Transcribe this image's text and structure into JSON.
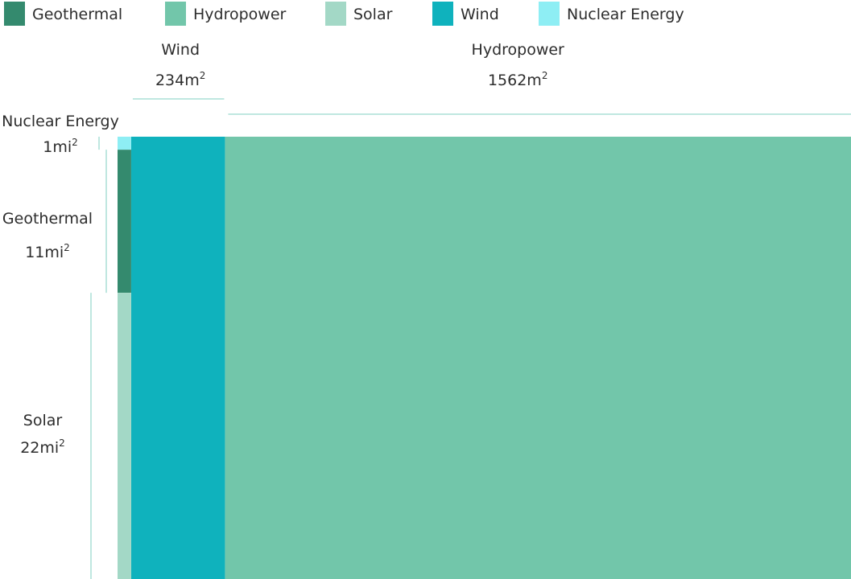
{
  "chart_data": {
    "type": "treemap",
    "legend_position": "top",
    "legend": [
      {
        "name": "Geothermal",
        "color": "#348a6e"
      },
      {
        "name": "Hydropower",
        "color": "#72c6aa"
      },
      {
        "name": "Solar",
        "color": "#a3d8c6"
      },
      {
        "name": "Wind",
        "color": "#0fb2bd"
      },
      {
        "name": "Nuclear  Energy",
        "color": "#8eeef4"
      }
    ],
    "items": [
      {
        "name": "Hydropower",
        "value": 1562,
        "value_label": "1562m",
        "unit_mark": "2",
        "color": "#72c6aa"
      },
      {
        "name": "Wind",
        "value": 234,
        "value_label": "234m",
        "unit_mark": "2",
        "color": "#0fb2bd"
      },
      {
        "name": "Solar",
        "value": 22,
        "value_label": "22mi",
        "unit_mark": "2",
        "color": "#a3d8c6"
      },
      {
        "name": "Geothermal",
        "value": 11,
        "value_label": "11mi",
        "unit_mark": "2",
        "color": "#348a6e"
      },
      {
        "name": "Nuclear Energy",
        "value": 1,
        "value_label": "1mi",
        "unit_mark": "2",
        "color": "#8eeef4"
      }
    ]
  }
}
